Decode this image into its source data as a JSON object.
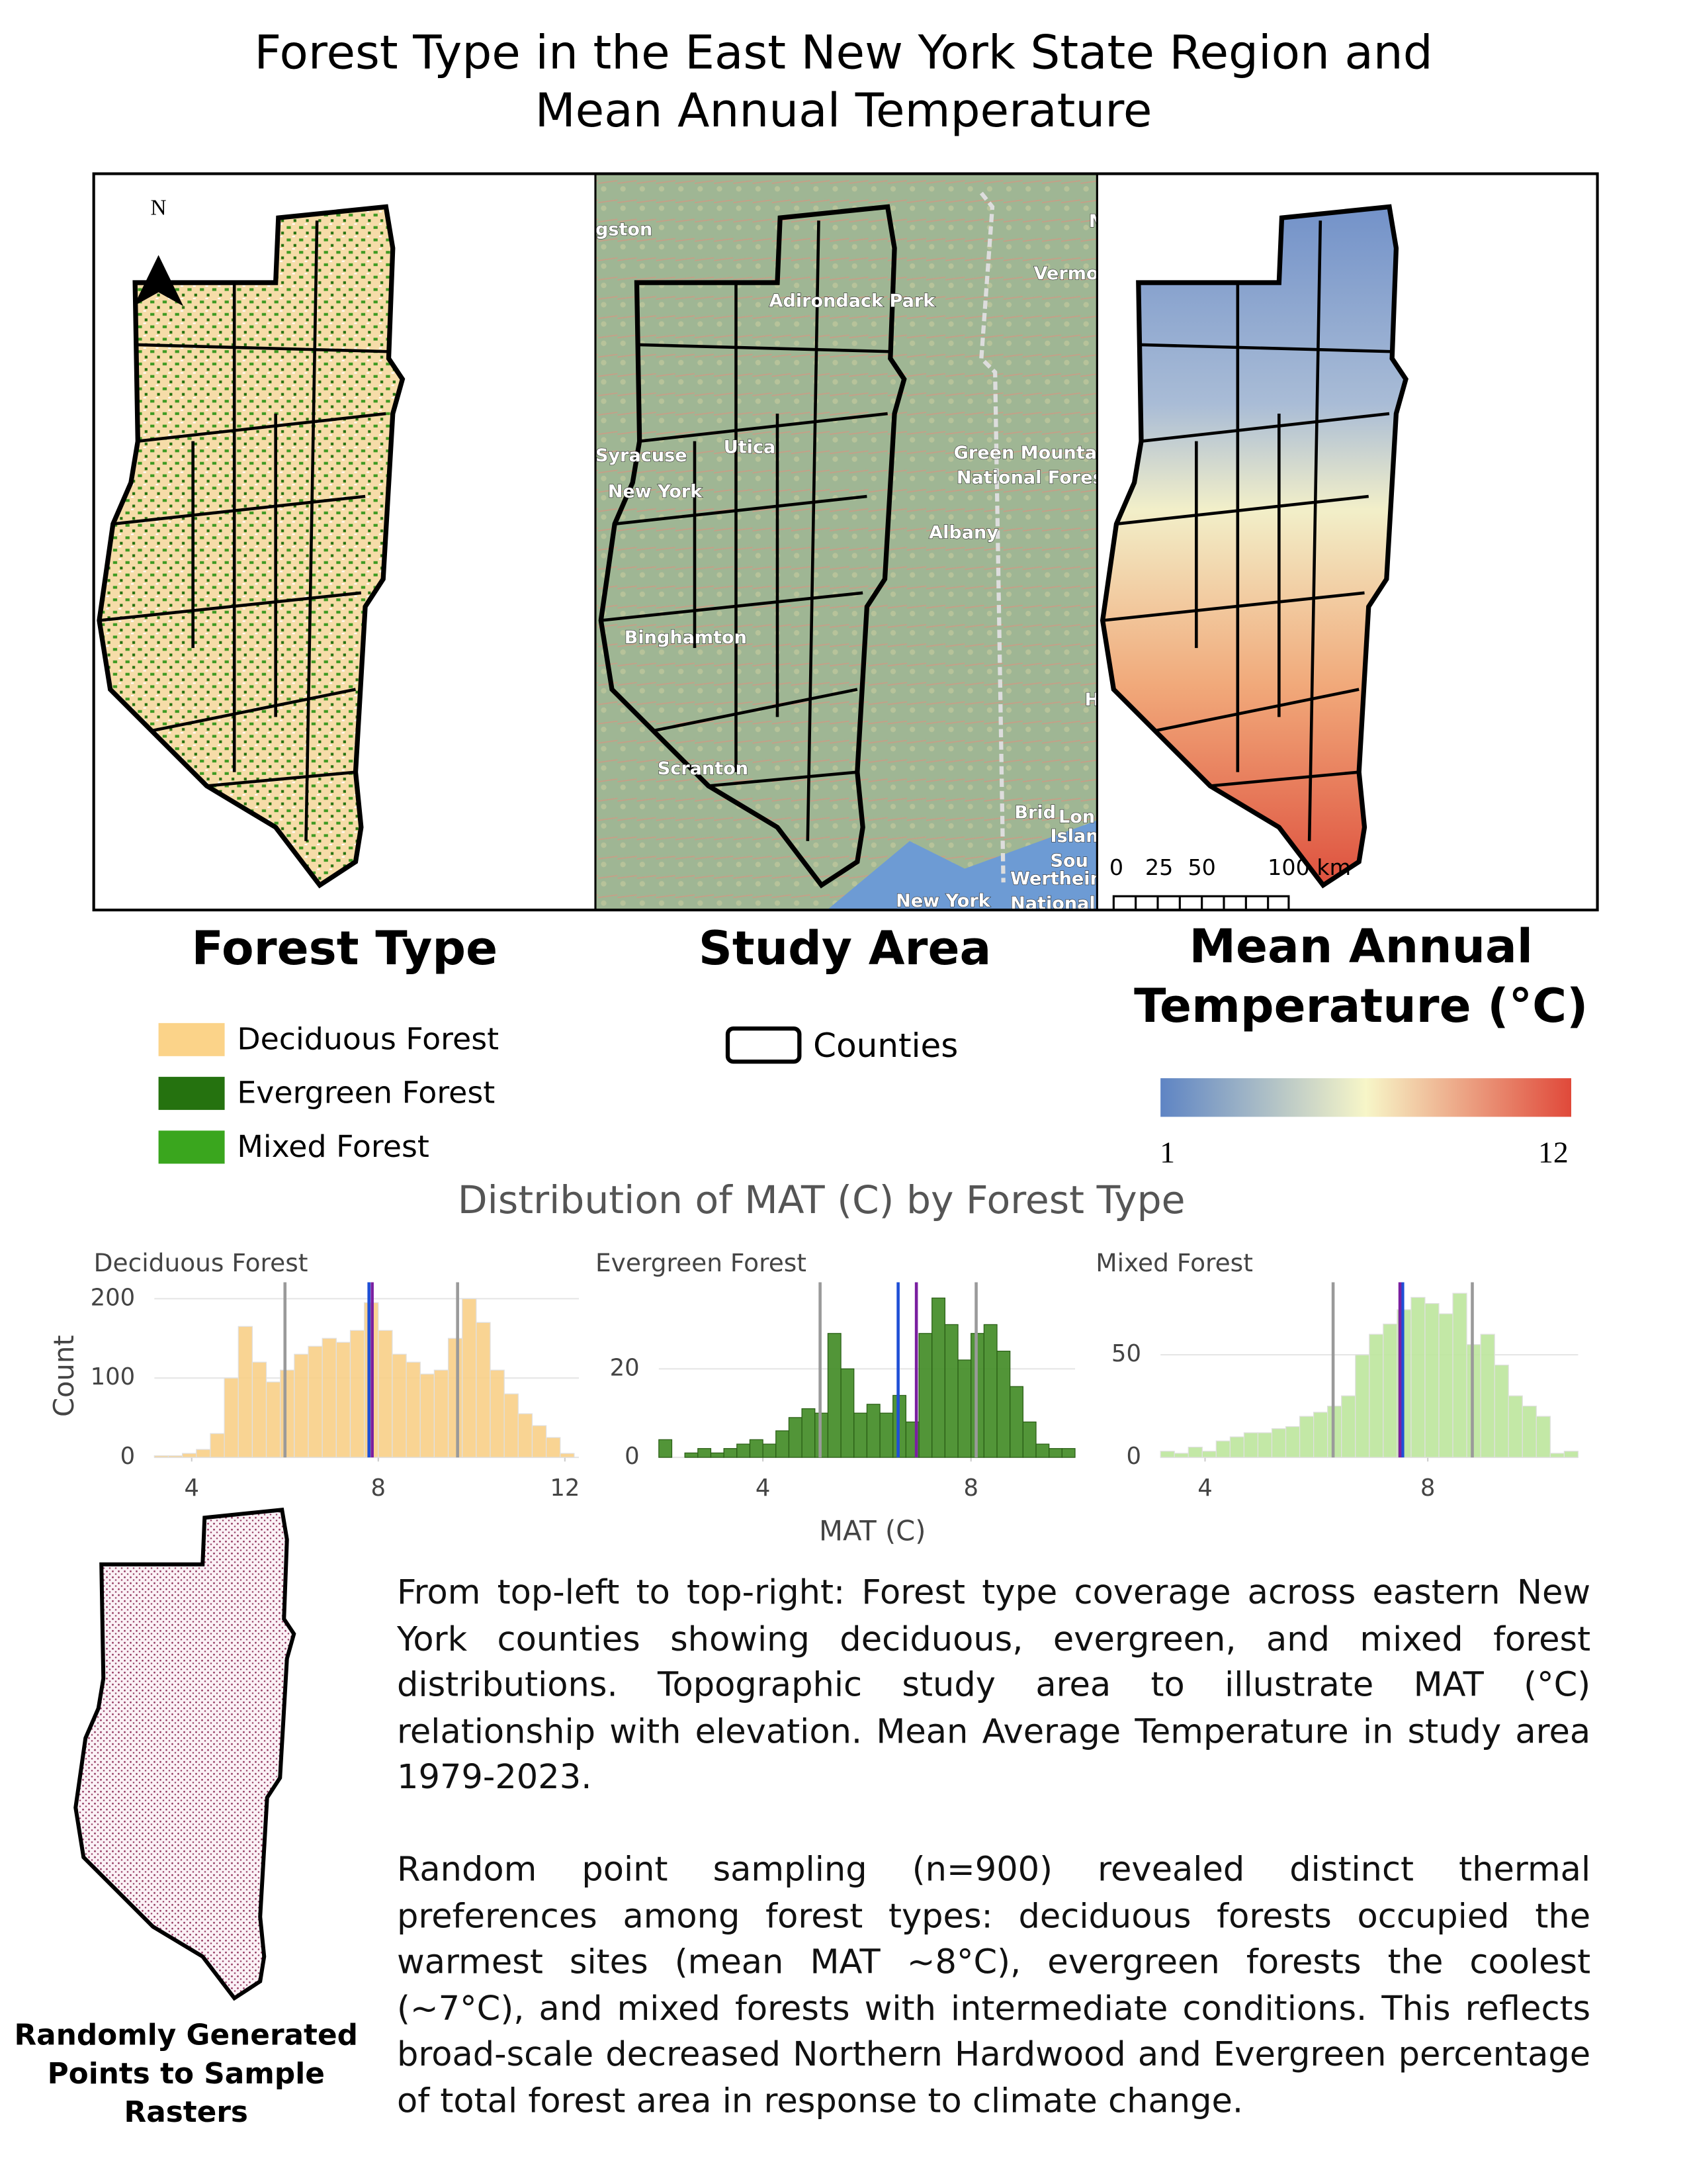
{
  "title": "Forest Type in the East New York State Region and Mean Annual Temperature",
  "north_label": "N",
  "basemap_labels": [
    "gston",
    "M",
    "Vermo",
    "Adirondack Park",
    "Syracuse",
    "Utica",
    "New York",
    "Green Mountai",
    "National Fores",
    "Albany",
    "Binghamton",
    "H",
    "Scranton",
    "Brid",
    "Lon",
    "Islan",
    "Sou",
    "Wertheim",
    "National Wil",
    "New York"
  ],
  "scale_bar": {
    "labels": [
      "0",
      "25",
      "50",
      "100 km"
    ]
  },
  "panel_titles": [
    "Forest Type",
    "Study Area",
    "Mean Annual Temperature (°C)"
  ],
  "forest_legend": {
    "items": [
      {
        "label": "Deciduous Forest",
        "color": "#fbd389"
      },
      {
        "label": "Evergreen Forest",
        "color": "#25720f"
      },
      {
        "label": "Mixed Forest",
        "color": "#3aa61e"
      }
    ]
  },
  "counties_legend": {
    "label": "Counties"
  },
  "colorbar": {
    "min": 1,
    "max": 12,
    "colors": [
      "#5e84c4",
      "#f7f6c8",
      "#e0493a"
    ]
  },
  "chart_data": {
    "type": "histogram",
    "title": "Distribution of MAT (C) by Forest Type",
    "xlabel": "MAT (C)",
    "ylabel": "Count",
    "facets": [
      {
        "title": "Deciduous Forest",
        "color": "#f8cf87",
        "bins": [
          3.2,
          3.5,
          3.8,
          4.1,
          4.4,
          4.7,
          5.0,
          5.3,
          5.6,
          5.9,
          6.2,
          6.5,
          6.8,
          7.1,
          7.4,
          7.7,
          8.0,
          8.3,
          8.6,
          8.9,
          9.2,
          9.5,
          9.8,
          10.1,
          10.4,
          10.7,
          11.0,
          11.3,
          11.6,
          11.9,
          12.2
        ],
        "counts": [
          2,
          2,
          5,
          10,
          30,
          100,
          165,
          120,
          95,
          110,
          130,
          140,
          150,
          145,
          160,
          195,
          160,
          130,
          120,
          105,
          110,
          150,
          200,
          170,
          110,
          80,
          55,
          40,
          25,
          5
        ],
        "xlim": [
          3.2,
          12.3
        ],
        "xticks": [
          4,
          8,
          12
        ],
        "ylim": [
          0,
          212
        ],
        "yticks": [
          0,
          100,
          200
        ],
        "reference_lines": [
          {
            "value": 6.0,
            "color": "#9a9a9a"
          },
          {
            "value": 9.7,
            "color": "#9a9a9a"
          },
          {
            "value": 7.8,
            "color": "#1f4fd6"
          },
          {
            "value": 7.87,
            "color": "#7a1fa0"
          }
        ]
      },
      {
        "title": "Evergreen Forest",
        "color": "#3f8a22",
        "bins": [
          2.0,
          2.25,
          2.5,
          2.75,
          3.0,
          3.25,
          3.5,
          3.75,
          4.0,
          4.25,
          4.5,
          4.75,
          5.0,
          5.25,
          5.5,
          5.75,
          6.0,
          6.25,
          6.5,
          6.75,
          7.0,
          7.25,
          7.5,
          7.75,
          8.0,
          8.25,
          8.5,
          8.75,
          9.0,
          9.25,
          9.5,
          9.75,
          10.0
        ],
        "counts": [
          4,
          0,
          1,
          2,
          1,
          2,
          3,
          4,
          3,
          6,
          9,
          11,
          10,
          28,
          20,
          10,
          12,
          10,
          14,
          8,
          28,
          36,
          30,
          22,
          28,
          30,
          24,
          16,
          8,
          3,
          2,
          2
        ],
        "xlim": [
          2.0,
          10.0
        ],
        "xticks": [
          4,
          8
        ],
        "ylim": [
          0,
          38
        ],
        "yticks": [
          0,
          20
        ],
        "reference_lines": [
          {
            "value": 5.1,
            "color": "#9a9a9a"
          },
          {
            "value": 8.1,
            "color": "#9a9a9a"
          },
          {
            "value": 6.6,
            "color": "#1f4fd6"
          },
          {
            "value": 6.95,
            "color": "#7a1fa0"
          }
        ]
      },
      {
        "title": "Mixed Forest",
        "color": "#bce59c",
        "bins": [
          3.2,
          3.45,
          3.7,
          3.95,
          4.2,
          4.45,
          4.7,
          4.95,
          5.2,
          5.45,
          5.7,
          5.95,
          6.2,
          6.45,
          6.7,
          6.95,
          7.2,
          7.45,
          7.7,
          7.95,
          8.2,
          8.45,
          8.7,
          8.95,
          9.2,
          9.45,
          9.7,
          9.95,
          10.2,
          10.45,
          10.7
        ],
        "counts": [
          3,
          2,
          5,
          3,
          8,
          10,
          12,
          12,
          14,
          15,
          20,
          22,
          25,
          30,
          50,
          60,
          65,
          72,
          78,
          75,
          70,
          80,
          55,
          60,
          45,
          30,
          25,
          20,
          2,
          3
        ],
        "xlim": [
          3.2,
          10.7
        ],
        "xticks": [
          4,
          8
        ],
        "ylim": [
          0,
          82
        ],
        "yticks": [
          0,
          50
        ],
        "reference_lines": [
          {
            "value": 6.3,
            "color": "#9a9a9a"
          },
          {
            "value": 8.8,
            "color": "#9a9a9a"
          },
          {
            "value": 7.55,
            "color": "#1f4fd6"
          },
          {
            "value": 7.5,
            "color": "#7a1fa0"
          }
        ]
      }
    ]
  },
  "inset_caption": "Randomly Generated Points to Sample Rasters",
  "description": {
    "paragraphs": [
      "From top-left to top-right: Forest type coverage across eastern New York counties showing deciduous, evergreen, and mixed forest distributions. Topographic study area to illustrate MAT (°C) relationship with elevation. Mean Average Temperature in study area 1979-2023.",
      "Random point sampling (n=900) revealed distinct thermal preferences among forest types: deciduous forests occupied the warmest sites (mean MAT ~8°C), evergreen forests the coolest (~7°C), and mixed forests with intermediate conditions. This reflects broad-scale decreased Northern Hardwood and Evergreen percentage of total forest area in response to climate change."
    ]
  }
}
